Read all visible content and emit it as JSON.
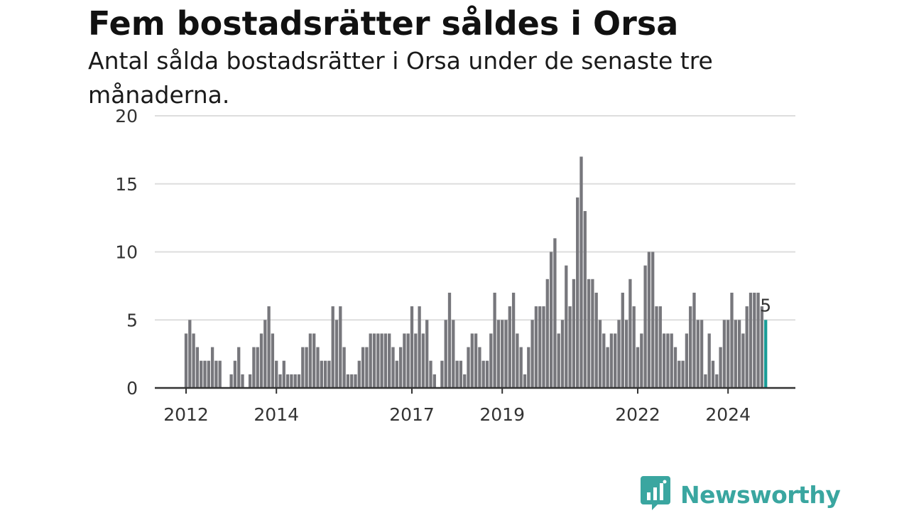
{
  "header": {
    "title": "Fem bostadsrätter såldes i Orsa",
    "subtitle": "Antal sålda bostadsrätter i Orsa under de senaste tre månaderna."
  },
  "brand": {
    "name": "Newsworthy",
    "logo_icon": "bar-chart-speech-bubble-icon",
    "color": "#3aa6a0"
  },
  "chart_data": {
    "type": "bar",
    "title": "Fem bostadsrätter såldes i Orsa",
    "subtitle": "Antal sålda bostadsrätter i Orsa under de senaste tre månaderna.",
    "xlabel": "",
    "ylabel": "",
    "ylim": [
      0,
      20
    ],
    "yticks": [
      0,
      5,
      10,
      15,
      20
    ],
    "grid": "horizontal",
    "bar_color": "#77777c",
    "highlight_color": "#1a9c97",
    "start": "2012-01",
    "xticks": [
      {
        "label": "2012",
        "month": "2012-01"
      },
      {
        "label": "2014",
        "month": "2014-01"
      },
      {
        "label": "2017",
        "month": "2017-01"
      },
      {
        "label": "2019",
        "month": "2019-01"
      },
      {
        "label": "2022",
        "month": "2022-01"
      },
      {
        "label": "2024",
        "month": "2024-01"
      }
    ],
    "values": [
      4,
      5,
      4,
      3,
      2,
      2,
      2,
      3,
      2,
      2,
      0,
      0,
      1,
      2,
      3,
      1,
      0,
      1,
      3,
      3,
      4,
      5,
      6,
      4,
      2,
      1,
      2,
      1,
      1,
      1,
      1,
      3,
      3,
      4,
      4,
      3,
      2,
      2,
      2,
      6,
      5,
      6,
      3,
      1,
      1,
      1,
      2,
      3,
      3,
      4,
      4,
      4,
      4,
      4,
      4,
      3,
      2,
      3,
      4,
      4,
      6,
      4,
      6,
      4,
      5,
      2,
      1,
      0,
      2,
      5,
      7,
      5,
      2,
      2,
      1,
      3,
      4,
      4,
      3,
      2,
      2,
      4,
      7,
      5,
      5,
      5,
      6,
      7,
      4,
      3,
      1,
      3,
      5,
      6,
      6,
      6,
      8,
      10,
      11,
      4,
      5,
      9,
      6,
      8,
      14,
      17,
      13,
      8,
      8,
      7,
      5,
      4,
      3,
      4,
      4,
      5,
      7,
      5,
      8,
      6,
      3,
      4,
      9,
      10,
      10,
      6,
      6,
      4,
      4,
      4,
      3,
      2,
      2,
      4,
      6,
      7,
      5,
      5,
      1,
      4,
      2,
      1,
      3,
      5,
      5,
      7,
      5,
      5,
      4,
      6,
      7,
      7,
      7,
      6,
      5
    ],
    "last_value_label": "5"
  }
}
